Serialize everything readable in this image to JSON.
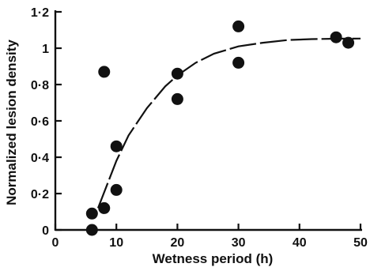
{
  "chart_data": {
    "type": "scatter",
    "xlabel": "Wetness period (h)",
    "ylabel": "Normalized lesion density",
    "xlim": [
      0,
      50
    ],
    "ylim": [
      0,
      1.2
    ],
    "x_ticks": [
      0,
      10,
      20,
      30,
      40,
      50
    ],
    "x_tick_labels": [
      "0",
      "10",
      "20",
      "30",
      "40",
      "50"
    ],
    "y_ticks": [
      0,
      0.2,
      0.4,
      0.6,
      0.8,
      1,
      1.2
    ],
    "y_tick_labels": [
      "0",
      "0·2",
      "0·4",
      "0·6",
      "0·8",
      "1",
      "1·2"
    ],
    "grid": false,
    "legend": "none",
    "series": [
      {
        "points": [
          {
            "x": 6,
            "y": 0.09
          },
          {
            "x": 6,
            "y": 0.0
          },
          {
            "x": 8,
            "y": 0.12
          },
          {
            "x": 8,
            "y": 0.87
          },
          {
            "x": 10,
            "y": 0.22
          },
          {
            "x": 10,
            "y": 0.46
          },
          {
            "x": 20,
            "y": 0.72
          },
          {
            "x": 20,
            "y": 0.86
          },
          {
            "x": 30,
            "y": 0.92
          },
          {
            "x": 30,
            "y": 1.12
          },
          {
            "x": 46,
            "y": 1.06
          },
          {
            "x": 48,
            "y": 1.03
          }
        ]
      }
    ],
    "fitted_curve": {
      "x": [
        7,
        10,
        12,
        15,
        18,
        20,
        23,
        26,
        30,
        34,
        38,
        42,
        46,
        50
      ],
      "y": [
        0.12,
        0.38,
        0.52,
        0.67,
        0.79,
        0.85,
        0.92,
        0.97,
        1.01,
        1.03,
        1.045,
        1.05,
        1.052,
        1.053
      ]
    },
    "color": "#111111"
  }
}
